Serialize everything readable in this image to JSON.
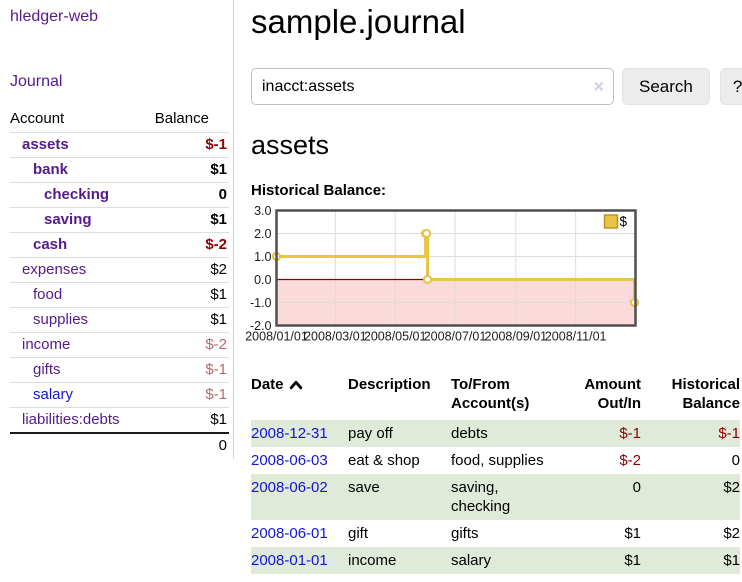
{
  "colors": {
    "link_purple": "#551a8b",
    "link_blue": "#1414d6",
    "neg_strong": "#8f0000",
    "neg_soft": "#b36b6b",
    "row_green": "#dfead9",
    "chart_line": "#e8c545",
    "chart_neg_bg": "#fbdada",
    "chart_zero": "#8b0000"
  },
  "sidebar": {
    "brand": "hledger-web",
    "nav": {
      "journal": "Journal"
    },
    "accounts_table": {
      "headers": {
        "account": "Account",
        "balance": "Balance"
      },
      "rows": [
        {
          "name": "assets",
          "indent": 0,
          "matched": true,
          "balance": "$-1",
          "balance_style": "neg-strong"
        },
        {
          "name": "bank",
          "indent": 1,
          "matched": true,
          "balance": "$1",
          "balance_style": "pos"
        },
        {
          "name": "checking",
          "indent": 2,
          "matched": true,
          "balance": "0",
          "balance_style": "pos"
        },
        {
          "name": "saving",
          "indent": 2,
          "matched": true,
          "balance": "$1",
          "balance_style": "pos"
        },
        {
          "name": "cash",
          "indent": 1,
          "matched": true,
          "balance": "$-2",
          "balance_style": "neg-strong"
        },
        {
          "name": "expenses",
          "indent": 0,
          "matched": false,
          "balance": "$2",
          "balance_style": "pos"
        },
        {
          "name": "food",
          "indent": 1,
          "matched": false,
          "balance": "$1",
          "balance_style": "pos"
        },
        {
          "name": "supplies",
          "indent": 1,
          "matched": false,
          "balance": "$1",
          "balance_style": "pos"
        },
        {
          "name": "income",
          "indent": 0,
          "matched": false,
          "balance": "$-2",
          "balance_style": "neg-soft"
        },
        {
          "name": "gifts",
          "indent": 1,
          "matched": false,
          "balance": "$-1",
          "balance_style": "neg-soft"
        },
        {
          "name": "salary",
          "indent": 1,
          "matched": false,
          "balance": "$-1",
          "balance_style": "neg-soft",
          "unvisited": true
        },
        {
          "name": "liabilities:debts",
          "indent": 0,
          "matched": false,
          "balance": "$1",
          "balance_style": "pos"
        }
      ],
      "total": "0"
    }
  },
  "main": {
    "title": "sample.journal",
    "search": {
      "value": "inacct:assets",
      "clear_icon": "×",
      "search_button": "Search",
      "help_button": "?"
    },
    "account_heading": "assets",
    "chart_title": "Historical Balance:"
  },
  "chart_data": {
    "type": "line",
    "title": "Historical Balance:",
    "step": true,
    "x_range": [
      "2008-01-01",
      "2009-01-01"
    ],
    "ylim": [
      -2,
      3
    ],
    "y_ticks": [
      {
        "value": 3,
        "label": "3.0"
      },
      {
        "value": 2,
        "label": "2.0"
      },
      {
        "value": 1,
        "label": "1.0"
      },
      {
        "value": 0,
        "label": "0.0"
      },
      {
        "value": -1,
        "label": "-1.0"
      },
      {
        "value": -2,
        "label": "-2.0"
      }
    ],
    "x_ticks": [
      {
        "date": "2008-01-01",
        "label": "2008/01/01"
      },
      {
        "date": "2008-03-01",
        "label": "2008/03/01"
      },
      {
        "date": "2008-05-01",
        "label": "2008/05/01"
      },
      {
        "date": "2008-07-01",
        "label": "2008/07/01"
      },
      {
        "date": "2008-09-01",
        "label": "2008/09/01"
      },
      {
        "date": "2008-11-01",
        "label": "2008/11/01"
      }
    ],
    "series": [
      {
        "name": "$",
        "color": "#e8c545",
        "points": [
          {
            "date": "2008-01-01",
            "value": 1
          },
          {
            "date": "2008-06-01",
            "value": 2
          },
          {
            "date": "2008-06-02",
            "value": 2
          },
          {
            "date": "2008-06-03",
            "value": 0
          },
          {
            "date": "2008-12-31",
            "value": -1
          }
        ]
      }
    ],
    "legend": {
      "position": "top-right",
      "entries": [
        "$"
      ]
    },
    "grid": true,
    "negative_region_color": "#fbdada",
    "zero_line_color": "#8b0000"
  },
  "register": {
    "headers": [
      {
        "lines": [
          "Date"
        ],
        "align": "left",
        "sort": "asc"
      },
      {
        "lines": [
          "Description"
        ],
        "align": "left"
      },
      {
        "lines": [
          "To/From",
          "Account(s)"
        ],
        "align": "left"
      },
      {
        "lines": [
          "Amount",
          "Out/In"
        ],
        "align": "right"
      },
      {
        "lines": [
          "Historical",
          "Balance"
        ],
        "align": "right"
      }
    ],
    "rows": [
      {
        "date": "2008-12-31",
        "description": "pay off",
        "accounts": "debts",
        "amount": "$-1",
        "amount_neg": true,
        "balance": "$-1",
        "balance_neg": true
      },
      {
        "date": "2008-06-03",
        "description": "eat & shop",
        "accounts": "food, supplies",
        "amount": "$-2",
        "amount_neg": true,
        "balance": "0",
        "balance_neg": false
      },
      {
        "date": "2008-06-02",
        "description": "save",
        "accounts": "saving, checking",
        "amount": "0",
        "amount_neg": false,
        "balance": "$2",
        "balance_neg": false
      },
      {
        "date": "2008-06-01",
        "description": "gift",
        "accounts": "gifts",
        "amount": "$1",
        "amount_neg": false,
        "balance": "$2",
        "balance_neg": false
      },
      {
        "date": "2008-01-01",
        "description": "income",
        "accounts": "salary",
        "amount": "$1",
        "amount_neg": false,
        "balance": "$1",
        "balance_neg": false
      }
    ]
  }
}
